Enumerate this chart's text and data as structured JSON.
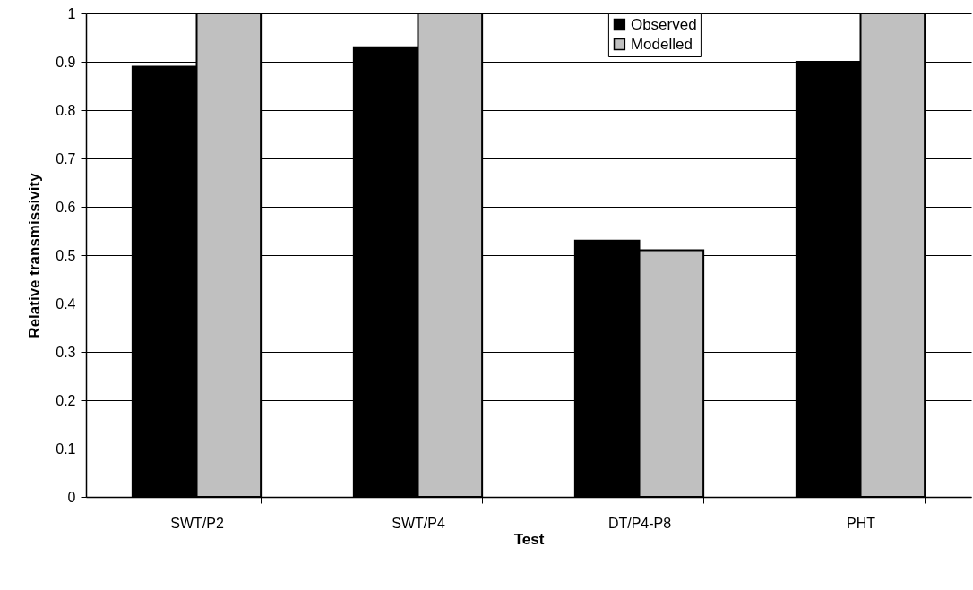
{
  "chart_data": {
    "type": "bar",
    "xlabel": "Test",
    "ylabel": "Relative transmissivity",
    "categories": [
      "SWT/P2",
      "SWT/P4",
      "DT/P4-P8",
      "PHT"
    ],
    "series": [
      {
        "name": "Observed",
        "color": "#000000",
        "values": [
          0.89,
          0.93,
          0.53,
          0.9
        ]
      },
      {
        "name": "Modelled",
        "color": "#c0c0c0",
        "values": [
          1,
          1,
          0.51,
          1
        ]
      }
    ],
    "ylim": [
      0,
      1
    ],
    "yticks": [
      0,
      0.1,
      0.2,
      0.3,
      0.4,
      0.5,
      0.6,
      0.7,
      0.8,
      0.9,
      1
    ],
    "grid": "y",
    "legend": "top"
  }
}
